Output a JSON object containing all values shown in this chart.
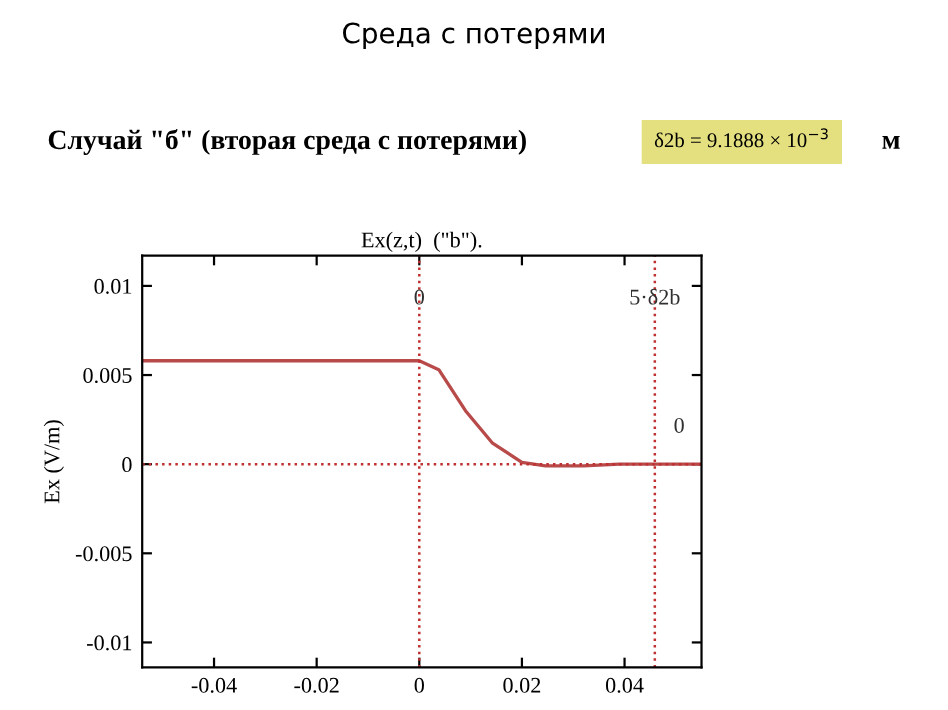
{
  "chart_data": {
    "type": "line",
    "title": "Среда с потерями",
    "subtitle": "Случай \"б\" (вторая среда с потерями)",
    "annotations": [
      "δ2b = 9.1888 × 10$^{−3}$",
      "м",
      "Ex(z,t)  (\"b\")."
    ],
    "ylabel": "Ex (V/m)",
    "x": [
      -0.054,
      -0.03,
      0,
      0.0038,
      0.009,
      0.0142,
      0.02,
      0.0246,
      0.032,
      0.039,
      0.0459,
      0.055
    ],
    "series": [
      {
        "color": "#b84a4a",
        "values": [
          0.0058,
          0.0058,
          0.0058,
          0.0053,
          0.003,
          0.0012,
          0.0001,
          -0.0001,
          -0.0001,
          0,
          0,
          0
        ]
      }
    ],
    "xlim": [
      -0.054,
      0.055
    ],
    "ylim": [
      -0.0114,
      0.0117
    ],
    "xticks": [
      -0.04,
      -0.02,
      0,
      0.02,
      0.04
    ],
    "yticks": [
      -0.01,
      -0.005,
      0,
      0.005,
      0.01
    ],
    "ref_lines": [
      {
        "axis": "x",
        "value": 0,
        "label": "0",
        "color": "#c03030",
        "line_style": "dotted"
      },
      {
        "axis": "x",
        "value": 0.0459,
        "label": "5·δ2b",
        "color": "#c03030",
        "line_style": "dotted"
      },
      {
        "axis": "y",
        "value": 0,
        "label": "0",
        "color": "#c03030",
        "line_style": "dotted"
      }
    ],
    "grid": false,
    "marker": "none",
    "line_style": "solid"
  }
}
